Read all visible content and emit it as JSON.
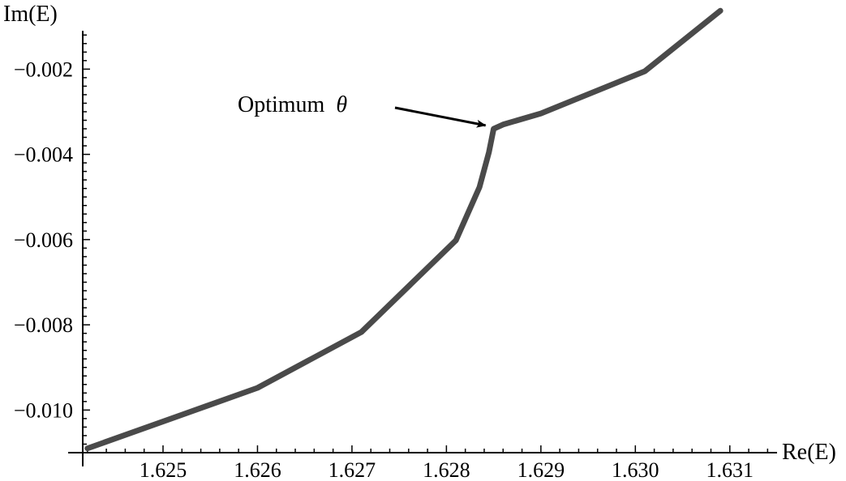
{
  "chart_data": {
    "type": "line",
    "xlabel": "Re(E)",
    "ylabel": "Im(E)",
    "xlim": [
      1.62415,
      1.6315
    ],
    "ylim": [
      -0.011,
      -0.0011
    ],
    "x_ticks": [
      1.625,
      1.626,
      1.627,
      1.628,
      1.629,
      1.63,
      1.631
    ],
    "x_tick_labels": [
      "1.625",
      "1.626",
      "1.627",
      "1.628",
      "1.629",
      "1.630",
      "1.631"
    ],
    "y_ticks": [
      -0.002,
      -0.004,
      -0.006,
      -0.008,
      -0.01
    ],
    "y_tick_labels": [
      "−0.002",
      "−0.004",
      "−0.006",
      "−0.008",
      "−0.010"
    ],
    "series": [
      {
        "color": "#4a4a4a",
        "x": [
          1.6242,
          1.626,
          1.6271,
          1.6281,
          1.62835,
          1.62845,
          1.6285,
          1.6286,
          1.629,
          1.6301,
          1.6309
        ],
        "y": [
          -0.0109,
          -0.00948,
          -0.00817,
          -0.00602,
          -0.00477,
          -0.00395,
          -0.0034,
          -0.0033,
          -0.00304,
          -0.00205,
          -0.00063
        ]
      }
    ],
    "annotations": [
      {
        "text": "Optimum",
        "symbol": "θ",
        "points_to": {
          "x": 1.6285,
          "y": -0.00334
        }
      }
    ],
    "grid": false
  }
}
